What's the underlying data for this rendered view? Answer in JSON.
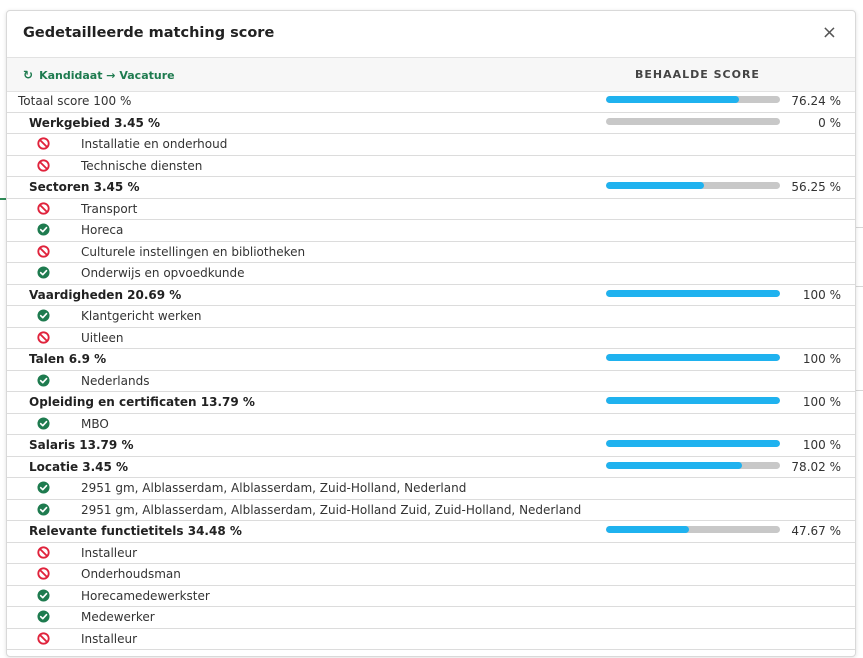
{
  "modal": {
    "title": "Gedetailleerde matching score",
    "close_icon": "×",
    "direction_label": "Kandidaat → Vacature",
    "direction_icon": "↻",
    "score_header": "BEHAALDE SCORE"
  },
  "colors": {
    "bar_fill": "#1fb2ef",
    "bar_track": "#c8c8c8",
    "ok": "#1e7b4f",
    "no": "#e0233c",
    "accent": "#1e7b4f"
  },
  "rows": [
    {
      "type": "total",
      "label": "Totaal score   100 %",
      "score": 0.7624,
      "pct": "76.24 %"
    },
    {
      "type": "cat",
      "label": "Werkgebied   3.45 %",
      "score": 0,
      "pct": "0 %"
    },
    {
      "type": "item",
      "status": "no",
      "label": "Installatie en onderhoud"
    },
    {
      "type": "item",
      "status": "no",
      "label": "Technische diensten"
    },
    {
      "type": "cat",
      "label": "Sectoren   3.45 %",
      "score": 0.5625,
      "pct": "56.25 %"
    },
    {
      "type": "item",
      "status": "no",
      "label": "Transport"
    },
    {
      "type": "item",
      "status": "ok",
      "label": "Horeca"
    },
    {
      "type": "item",
      "status": "no",
      "label": "Culturele instellingen en bibliotheken"
    },
    {
      "type": "item",
      "status": "ok",
      "label": "Onderwijs en opvoedkunde"
    },
    {
      "type": "cat",
      "label": "Vaardigheden   20.69 %",
      "score": 1,
      "pct": "100 %"
    },
    {
      "type": "item",
      "status": "ok",
      "label": "Klantgericht werken"
    },
    {
      "type": "item",
      "status": "no",
      "label": "Uitleen"
    },
    {
      "type": "cat",
      "label": "Talen   6.9 %",
      "score": 1,
      "pct": "100 %"
    },
    {
      "type": "item",
      "status": "ok",
      "label": "Nederlands"
    },
    {
      "type": "cat",
      "label": "Opleiding en certificaten   13.79 %",
      "score": 1,
      "pct": "100 %"
    },
    {
      "type": "item",
      "status": "ok",
      "label": "MBO"
    },
    {
      "type": "cat",
      "label": "Salaris   13.79 %",
      "score": 1,
      "pct": "100 %"
    },
    {
      "type": "cat",
      "label": "Locatie   3.45 %",
      "score": 0.7802,
      "pct": "78.02 %"
    },
    {
      "type": "item",
      "status": "ok",
      "label": "2951 gm, Alblasserdam, Alblasserdam, Zuid-Holland, Nederland"
    },
    {
      "type": "item",
      "status": "ok",
      "label": "2951 gm, Alblasserdam, Alblasserdam, Zuid-Holland Zuid, Zuid-Holland, Nederland"
    },
    {
      "type": "cat",
      "label": "Relevante functietitels   34.48 %",
      "score": 0.4767,
      "pct": "47.67 %"
    },
    {
      "type": "item",
      "status": "no",
      "label": "Installeur"
    },
    {
      "type": "item",
      "status": "no",
      "label": "Onderhoudsman"
    },
    {
      "type": "item",
      "status": "ok",
      "label": "Horecamedewerkster"
    },
    {
      "type": "item",
      "status": "ok",
      "label": "Medewerker"
    },
    {
      "type": "item",
      "status": "no",
      "label": "Installeur"
    }
  ]
}
